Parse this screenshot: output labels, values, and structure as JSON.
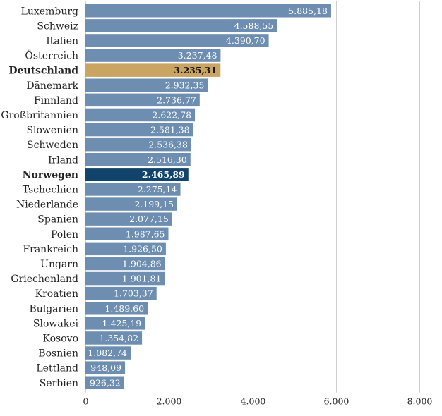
{
  "chart_data": {
    "type": "bar",
    "orientation": "horizontal",
    "categories": [
      "Luxemburg",
      "Schweiz",
      "Italien",
      "Österreich",
      "Deutschland",
      "Dänemark",
      "Finnland",
      "Großbritannien",
      "Slowenien",
      "Schweden",
      "Irland",
      "Norwegen",
      "Tschechien",
      "Niederlande",
      "Spanien",
      "Polen",
      "Frankreich",
      "Ungarn",
      "Griechenland",
      "Kroatien",
      "Bulgarien",
      "Slowakei",
      "Kosovo",
      "Bosnien",
      "Lettland",
      "Serbien"
    ],
    "values": [
      5885.18,
      4588.55,
      4390.7,
      3237.48,
      3235.31,
      2932.35,
      2736.77,
      2622.78,
      2581.38,
      2536.38,
      2516.3,
      2465.89,
      2275.14,
      2199.15,
      2077.15,
      1987.65,
      1926.5,
      1904.86,
      1901.81,
      1703.37,
      1489.6,
      1425.19,
      1354.82,
      1082.74,
      948.09,
      926.32
    ],
    "value_labels": [
      "5.885,18",
      "4.588,55",
      "4.390,70",
      "3.237,48",
      "3.235,31",
      "2.932,35",
      "2.736,77",
      "2.622,78",
      "2.581,38",
      "2.536,38",
      "2.516,30",
      "2.465,89",
      "2.275,14",
      "2.199,15",
      "2.077,15",
      "1.987,65",
      "1.926,50",
      "1.904,86",
      "1.901,81",
      "1.703,37",
      "1.489,60",
      "1.425,19",
      "1.354,82",
      "1.082,74",
      "948,09",
      "926,32"
    ],
    "highlight": {
      "Deutschland": "gold",
      "Norwegen": "navy"
    },
    "xlim": [
      0,
      8000
    ],
    "xticks": [
      0,
      2000,
      4000,
      6000,
      8000
    ],
    "xtick_labels": [
      "0",
      "2.000",
      "4.000",
      "6.000",
      "8.000"
    ],
    "grid": true,
    "title": "",
    "xlabel": "",
    "ylabel": "",
    "colors": {
      "default": "#6d8eb0",
      "gold": "#c9a463",
      "navy": "#12436b"
    }
  }
}
